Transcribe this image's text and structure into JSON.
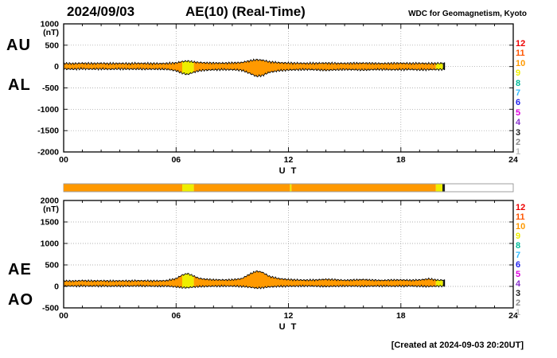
{
  "header": {
    "date": "2024/09/03",
    "title": "AE(10) (Real-Time)",
    "credit": "WDC for Geomagnetism, Kyoto"
  },
  "footer": {
    "created": "[Created at 2024-09-03 20:20UT]"
  },
  "station_legend": [
    "12",
    "11",
    "10",
    "9",
    "8",
    "7",
    "6",
    "5",
    "4",
    "3",
    "2",
    "1"
  ],
  "station_colors": {
    "12": "#ee0000",
    "11": "#ff5500",
    "10": "#ff9900",
    "9": "#eeee00",
    "8": "#00bb99",
    "7": "#33bbff",
    "6": "#2222ee",
    "5": "#dd00dd",
    "4": "#8833cc",
    "3": "#222222",
    "2": "#888888",
    "1": "#bbbbbb"
  },
  "chart_data": [
    {
      "type": "area",
      "name": "au-al",
      "left_labels": [
        "AU",
        "AL"
      ],
      "ylabel": "(nT)",
      "xlabel": "U T",
      "ylim": [
        -2000,
        1000
      ],
      "yticks": [
        1000,
        500,
        0,
        -500,
        -1000,
        -1500,
        -2000
      ],
      "xlim": [
        0,
        24
      ],
      "xticks": [
        {
          "t": 0,
          "label": "00"
        },
        {
          "t": 6,
          "label": "06"
        },
        {
          "t": 12,
          "label": "12"
        },
        {
          "t": 18,
          "label": "18"
        },
        {
          "t": 24,
          "label": "24"
        }
      ],
      "data_end": 20.33,
      "noise_nt": 30,
      "series": [
        {
          "name": "AU",
          "points": [
            [
              0,
              75
            ],
            [
              0.5,
              70
            ],
            [
              1,
              78
            ],
            [
              1.5,
              72
            ],
            [
              2,
              76
            ],
            [
              2.5,
              70
            ],
            [
              3,
              74
            ],
            [
              3.5,
              70
            ],
            [
              4,
              76
            ],
            [
              4.5,
              72
            ],
            [
              5,
              70
            ],
            [
              5.5,
              74
            ],
            [
              6,
              85
            ],
            [
              6.3,
              115
            ],
            [
              6.6,
              130
            ],
            [
              6.9,
              110
            ],
            [
              7.2,
              95
            ],
            [
              7.5,
              88
            ],
            [
              8,
              82
            ],
            [
              8.5,
              80
            ],
            [
              9,
              85
            ],
            [
              9.5,
              95
            ],
            [
              10,
              140
            ],
            [
              10.3,
              160
            ],
            [
              10.6,
              150
            ],
            [
              11,
              110
            ],
            [
              11.5,
              90
            ],
            [
              12,
              82
            ],
            [
              12.5,
              78
            ],
            [
              13,
              75
            ],
            [
              13.5,
              78
            ],
            [
              14,
              80
            ],
            [
              14.5,
              76
            ],
            [
              15,
              74
            ],
            [
              15.5,
              78
            ],
            [
              16,
              80
            ],
            [
              16.5,
              75
            ],
            [
              17,
              72
            ],
            [
              17.5,
              76
            ],
            [
              18,
              78
            ],
            [
              18.5,
              74
            ],
            [
              19,
              76
            ],
            [
              19.5,
              72
            ],
            [
              20,
              75
            ],
            [
              20.33,
              78
            ]
          ]
        },
        {
          "name": "AL",
          "points": [
            [
              0,
              -55
            ],
            [
              0.5,
              -60
            ],
            [
              1,
              -52
            ],
            [
              1.5,
              -58
            ],
            [
              2,
              -55
            ],
            [
              2.5,
              -60
            ],
            [
              3,
              -54
            ],
            [
              3.5,
              -58
            ],
            [
              4,
              -56
            ],
            [
              4.5,
              -60
            ],
            [
              5,
              -58
            ],
            [
              5.5,
              -62
            ],
            [
              6,
              -95
            ],
            [
              6.3,
              -150
            ],
            [
              6.6,
              -185
            ],
            [
              6.9,
              -140
            ],
            [
              7.2,
              -100
            ],
            [
              7.5,
              -85
            ],
            [
              8,
              -75
            ],
            [
              8.5,
              -70
            ],
            [
              9,
              -72
            ],
            [
              9.5,
              -85
            ],
            [
              10,
              -170
            ],
            [
              10.3,
              -230
            ],
            [
              10.6,
              -210
            ],
            [
              11,
              -130
            ],
            [
              11.5,
              -95
            ],
            [
              12,
              -80
            ],
            [
              12.5,
              -72
            ],
            [
              13,
              -68
            ],
            [
              13.5,
              -74
            ],
            [
              14,
              -85
            ],
            [
              14.5,
              -75
            ],
            [
              15,
              -68
            ],
            [
              15.5,
              -72
            ],
            [
              16,
              -78
            ],
            [
              16.5,
              -70
            ],
            [
              17,
              -66
            ],
            [
              17.5,
              -72
            ],
            [
              18,
              -70
            ],
            [
              18.5,
              -66
            ],
            [
              19,
              -75
            ],
            [
              19.5,
              -70
            ],
            [
              20,
              -68
            ],
            [
              20.33,
              -66
            ]
          ]
        }
      ],
      "fill_segments": [
        {
          "start": 0,
          "end": 6.33,
          "stations": "10"
        },
        {
          "start": 6.33,
          "end": 6.95,
          "stations": "9"
        },
        {
          "start": 6.95,
          "end": 19.87,
          "stations": "10"
        },
        {
          "start": 19.87,
          "end": 20.25,
          "stations": "9"
        },
        {
          "start": 20.25,
          "end": 20.33,
          "stations": "3"
        }
      ]
    },
    {
      "type": "heatmap",
      "name": "stations",
      "xlim": [
        0,
        24
      ],
      "segments": [
        {
          "start": 0,
          "end": 6.33,
          "stations": "10"
        },
        {
          "start": 6.33,
          "end": 6.95,
          "stations": "9"
        },
        {
          "start": 6.95,
          "end": 12.08,
          "stations": "10"
        },
        {
          "start": 12.08,
          "end": 12.16,
          "stations": "9"
        },
        {
          "start": 12.16,
          "end": 19.87,
          "stations": "10"
        },
        {
          "start": 19.87,
          "end": 20.22,
          "stations": "9"
        },
        {
          "start": 20.22,
          "end": 20.35,
          "stations": "3"
        }
      ]
    },
    {
      "type": "area",
      "name": "ae-ao",
      "left_labels": [
        "AE",
        "AO"
      ],
      "ylabel": "(nT)",
      "xlabel": "U T",
      "ylim": [
        -500,
        2000
      ],
      "yticks": [
        2000,
        1500,
        1000,
        500,
        0,
        -500
      ],
      "xlim": [
        0,
        24
      ],
      "xticks": [
        {
          "t": 0,
          "label": "00"
        },
        {
          "t": 6,
          "label": "06"
        },
        {
          "t": 12,
          "label": "12"
        },
        {
          "t": 18,
          "label": "18"
        },
        {
          "t": 24,
          "label": "24"
        }
      ],
      "data_end": 20.33,
      "noise_nt": 26,
      "series": [
        {
          "name": "AE",
          "points": [
            [
              0,
              130
            ],
            [
              0.5,
              125
            ],
            [
              1,
              135
            ],
            [
              1.5,
              128
            ],
            [
              2,
              132
            ],
            [
              2.5,
              126
            ],
            [
              3,
              130
            ],
            [
              3.5,
              128
            ],
            [
              4,
              134
            ],
            [
              4.5,
              130
            ],
            [
              5,
              128
            ],
            [
              5.5,
              135
            ],
            [
              6,
              180
            ],
            [
              6.3,
              260
            ],
            [
              6.6,
              300
            ],
            [
              6.9,
              250
            ],
            [
              7.2,
              190
            ],
            [
              7.5,
              170
            ],
            [
              8,
              155
            ],
            [
              8.5,
              150
            ],
            [
              9,
              155
            ],
            [
              9.5,
              180
            ],
            [
              10,
              300
            ],
            [
              10.3,
              355
            ],
            [
              10.6,
              330
            ],
            [
              11,
              230
            ],
            [
              11.5,
              180
            ],
            [
              12,
              160
            ],
            [
              12.5,
              150
            ],
            [
              13,
              145
            ],
            [
              13.5,
              150
            ],
            [
              14,
              165
            ],
            [
              14.5,
              155
            ],
            [
              15,
              142
            ],
            [
              15.5,
              150
            ],
            [
              16,
              158
            ],
            [
              16.5,
              146
            ],
            [
              17,
              140
            ],
            [
              17.5,
              148
            ],
            [
              18,
              150
            ],
            [
              18.5,
              142
            ],
            [
              19,
              150
            ],
            [
              19.5,
              175
            ],
            [
              20,
              145
            ],
            [
              20.33,
              145
            ]
          ]
        },
        {
          "name": "AO",
          "points": [
            [
              0,
              10
            ],
            [
              0.5,
              8
            ],
            [
              1,
              12
            ],
            [
              1.5,
              8
            ],
            [
              2,
              10
            ],
            [
              2.5,
              6
            ],
            [
              3,
              10
            ],
            [
              3.5,
              8
            ],
            [
              4,
              12
            ],
            [
              4.5,
              8
            ],
            [
              5,
              6
            ],
            [
              5.5,
              8
            ],
            [
              6,
              -10
            ],
            [
              6.3,
              -25
            ],
            [
              6.6,
              -30
            ],
            [
              6.9,
              -15
            ],
            [
              7.2,
              -5
            ],
            [
              7.5,
              0
            ],
            [
              8,
              5
            ],
            [
              8.5,
              8
            ],
            [
              9,
              8
            ],
            [
              9.5,
              0
            ],
            [
              10,
              -20
            ],
            [
              10.3,
              -40
            ],
            [
              10.6,
              -30
            ],
            [
              11,
              -10
            ],
            [
              11.5,
              0
            ],
            [
              12,
              5
            ],
            [
              12.5,
              8
            ],
            [
              13,
              10
            ],
            [
              13.5,
              6
            ],
            [
              14,
              0
            ],
            [
              14.5,
              5
            ],
            [
              15,
              10
            ],
            [
              15.5,
              8
            ],
            [
              16,
              4
            ],
            [
              16.5,
              8
            ],
            [
              17,
              10
            ],
            [
              17.5,
              6
            ],
            [
              18,
              8
            ],
            [
              18.5,
              10
            ],
            [
              19,
              5
            ],
            [
              19.5,
              0
            ],
            [
              20,
              8
            ],
            [
              20.33,
              8
            ]
          ]
        }
      ],
      "fill_segments": [
        {
          "start": 0,
          "end": 6.33,
          "stations": "10"
        },
        {
          "start": 6.33,
          "end": 6.95,
          "stations": "9"
        },
        {
          "start": 6.95,
          "end": 19.87,
          "stations": "10"
        },
        {
          "start": 19.87,
          "end": 20.25,
          "stations": "9"
        },
        {
          "start": 20.25,
          "end": 20.33,
          "stations": "3"
        }
      ]
    }
  ]
}
